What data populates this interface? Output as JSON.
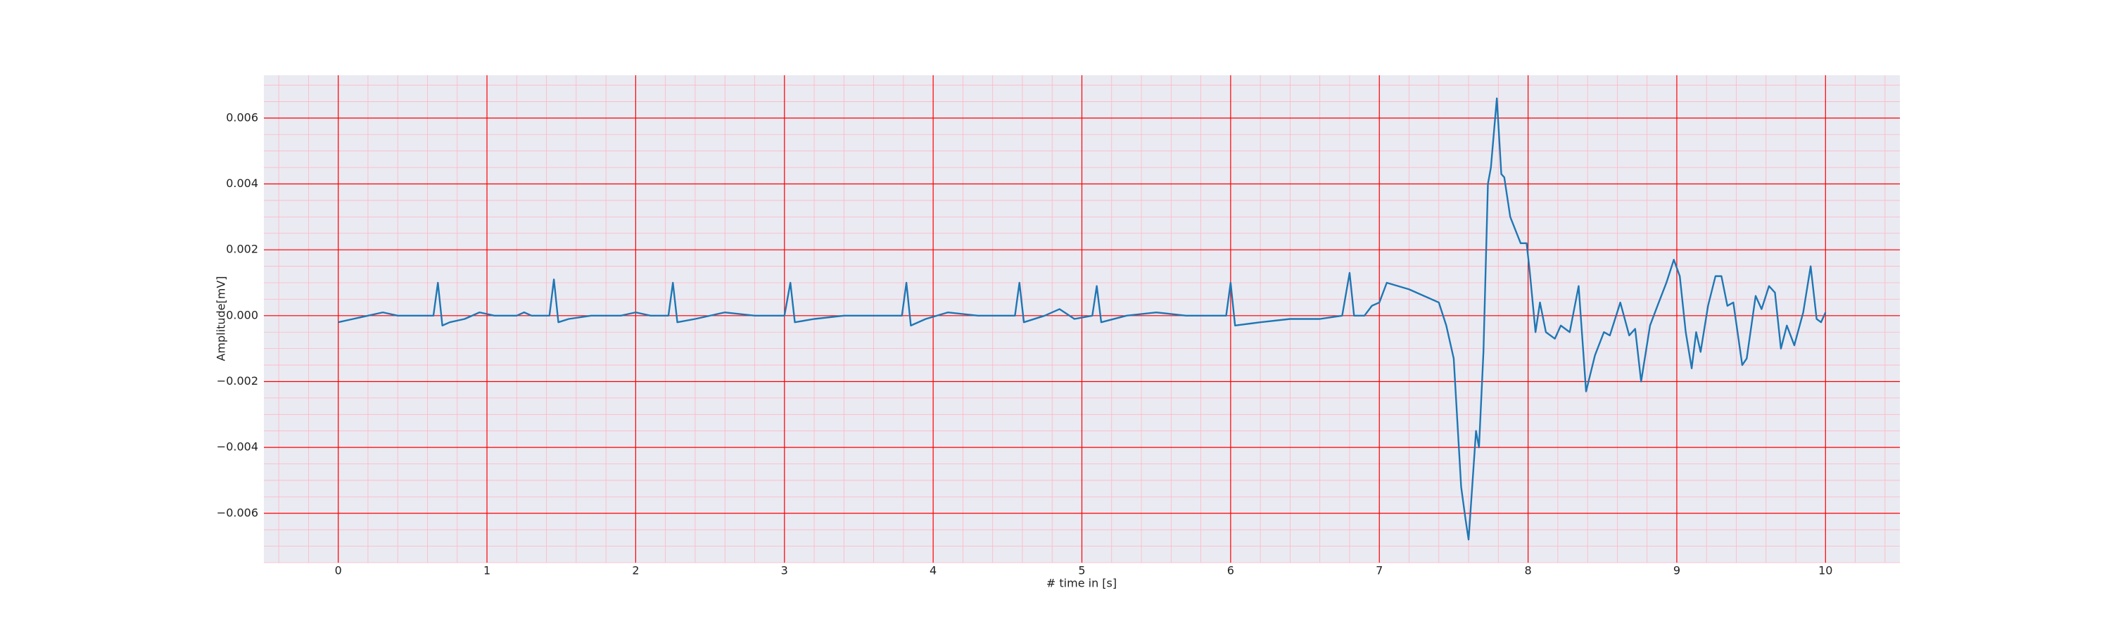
{
  "chart_data": {
    "type": "line",
    "xlabel": "# time in [s]",
    "ylabel": "Amplitude[mV]",
    "series": [
      {
        "color": "#1f77b4",
        "x": [
          0,
          0.1,
          0.2,
          0.3,
          0.4,
          0.5,
          0.6,
          0.64,
          0.67,
          0.7,
          0.75,
          0.85,
          0.95,
          1.05,
          1.2,
          1.25,
          1.3,
          1.42,
          1.45,
          1.48,
          1.55,
          1.7,
          1.9,
          2.0,
          2.1,
          2.22,
          2.25,
          2.28,
          2.4,
          2.6,
          2.8,
          3.0,
          3.04,
          3.07,
          3.2,
          3.4,
          3.6,
          3.79,
          3.82,
          3.85,
          3.95,
          4.1,
          4.3,
          4.55,
          4.58,
          4.61,
          4.75,
          4.85,
          4.95,
          5.07,
          5.1,
          5.13,
          5.3,
          5.5,
          5.7,
          5.97,
          6.0,
          6.03,
          6.2,
          6.4,
          6.6,
          6.75,
          6.8,
          6.83,
          6.9,
          6.95,
          7.0,
          7.05,
          7.2,
          7.3,
          7.4,
          7.45,
          7.5,
          7.55,
          7.58,
          7.6,
          7.65,
          7.67,
          7.7,
          7.73,
          7.75,
          7.79,
          7.82,
          7.84,
          7.88,
          7.95,
          7.99,
          8.01,
          8.05,
          8.08,
          8.12,
          8.18,
          8.22,
          8.28,
          8.34,
          8.39,
          8.45,
          8.51,
          8.55,
          8.62,
          8.68,
          8.72,
          8.76,
          8.82,
          8.87,
          8.93,
          8.98,
          9.02,
          9.06,
          9.1,
          9.13,
          9.16,
          9.21,
          9.26,
          9.3,
          9.34,
          9.38,
          9.44,
          9.47,
          9.53,
          9.57,
          9.62,
          9.66,
          9.7,
          9.74,
          9.79,
          9.85,
          9.9,
          9.94,
          9.97,
          10.0
        ],
        "values": [
          -0.0002,
          -0.0001,
          0.0,
          0.0001,
          0.0,
          0.0,
          0.0,
          0.0,
          0.001,
          -0.0003,
          -0.0002,
          -0.0001,
          0.0001,
          0.0,
          0.0,
          0.0001,
          0.0,
          0.0,
          0.0011,
          -0.0002,
          -0.0001,
          0.0,
          0.0,
          0.0001,
          0.0,
          0.0,
          0.001,
          -0.0002,
          -0.0001,
          0.0001,
          0.0,
          0.0,
          0.001,
          -0.0002,
          -0.0001,
          0.0,
          0.0,
          0.0,
          0.001,
          -0.0003,
          -0.0001,
          0.0001,
          0.0,
          0.0,
          0.001,
          -0.0002,
          0.0,
          0.0002,
          -0.0001,
          0.0,
          0.0009,
          -0.0002,
          0.0,
          0.0001,
          0.0,
          0.0,
          0.001,
          -0.0003,
          -0.0002,
          -0.0001,
          -0.0001,
          0.0,
          0.0013,
          0.0,
          0.0,
          0.0003,
          0.0004,
          0.001,
          0.0008,
          0.0006,
          0.0004,
          -0.0003,
          -0.0013,
          -0.0052,
          -0.0062,
          -0.0068,
          -0.0035,
          -0.004,
          -0.0011,
          0.004,
          0.0045,
          0.0066,
          0.0043,
          0.0042,
          0.003,
          0.0022,
          0.0022,
          0.0014,
          -0.0005,
          0.0004,
          -0.0005,
          -0.0007,
          -0.0003,
          -0.0005,
          0.0009,
          -0.0023,
          -0.0012,
          -0.0005,
          -0.0006,
          0.0004,
          -0.0006,
          -0.0004,
          -0.002,
          -0.0003,
          0.0003,
          0.001,
          0.0017,
          0.0012,
          -0.0005,
          -0.0016,
          -0.0005,
          -0.0011,
          0.0003,
          0.0012,
          0.0012,
          0.0003,
          0.0004,
          -0.0015,
          -0.0013,
          0.0006,
          0.0002,
          0.0009,
          0.0007,
          -0.001,
          -0.0003,
          -0.0009,
          0.0001,
          0.0015,
          -0.0001,
          -0.0002,
          0.0001
        ]
      }
    ],
    "xlim": [
      -0.5,
      10.5
    ],
    "xticks": [
      0,
      1,
      2,
      3,
      4,
      5,
      6,
      7,
      8,
      9,
      10
    ],
    "ylim": [
      -0.0075,
      0.0073
    ],
    "yticks": [
      {
        "value": -0.006,
        "label": "−0.006"
      },
      {
        "value": -0.004,
        "label": "−0.004"
      },
      {
        "value": -0.002,
        "label": "−0.002"
      },
      {
        "value": 0,
        "label": "0.000"
      },
      {
        "value": 0.002,
        "label": "0.002"
      },
      {
        "value": 0.004,
        "label": "0.004"
      },
      {
        "value": 0.006,
        "label": "0.006"
      }
    ],
    "grid": true,
    "grid_color": "#ff0000",
    "minor_grid": {
      "x_step": 0.2,
      "y_step": 0.0005,
      "color": "#ffb6c1"
    },
    "background": "#eaeaf2"
  }
}
